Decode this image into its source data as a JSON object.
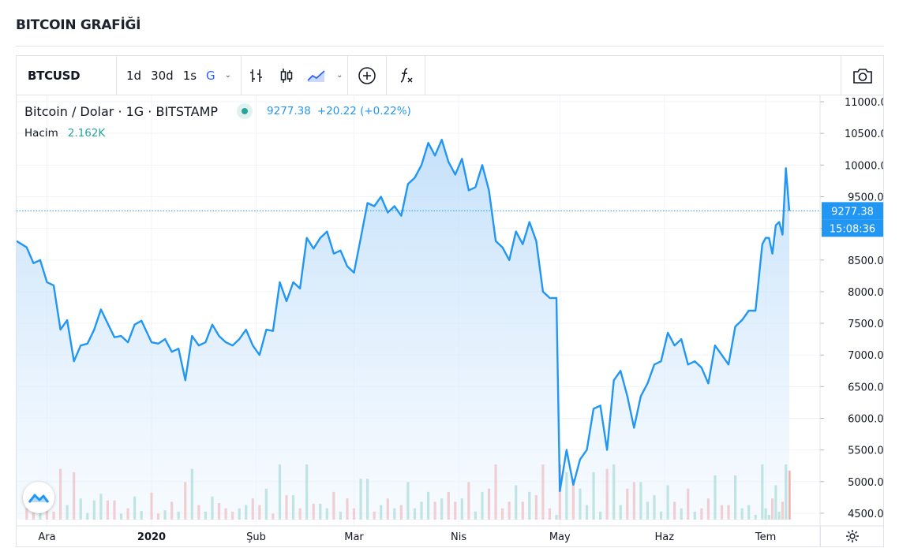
{
  "page_title": "BITCOIN GRAFİĞİ",
  "toolbar": {
    "symbol": "BTCUSD",
    "intervals": [
      {
        "label": "1d",
        "active": false
      },
      {
        "label": "30d",
        "active": false
      },
      {
        "label": "1s",
        "active": false
      },
      {
        "label": "G",
        "active": true
      }
    ],
    "chevron": "⌄"
  },
  "legend": {
    "instrument": "Bitcoin / Dolar · 1G · BITSTAMP",
    "price": "9277.38",
    "change": "+20.22 (+0.22%)",
    "volume_label": "Hacim",
    "volume_value": "2.162K"
  },
  "colors": {
    "line": "#2196f3",
    "area_top": "#bbdcfa",
    "area_bottom": "#eef6fe",
    "vol_up": "#8fd1c4",
    "vol_down": "#f2a5a5",
    "price_tag": "#2196f3"
  },
  "chart_data": {
    "type": "area",
    "title": "",
    "xlabel": "",
    "ylabel": "",
    "ylim": [
      4300,
      11100
    ],
    "y_ticks": [
      "11000.00",
      "10500.00",
      "10000.00",
      "9500.00",
      "9000.00",
      "8500.00",
      "8000.00",
      "7500.00",
      "7000.00",
      "6500.00",
      "6000.00",
      "5500.00",
      "5000.00",
      "4500.00"
    ],
    "y_tick_values": [
      11000,
      10500,
      10000,
      9500,
      9000,
      8500,
      8000,
      7500,
      7000,
      6500,
      6000,
      5500,
      5000,
      4500
    ],
    "x_ticks": [
      {
        "label": "Ara",
        "date": "2019-12-01"
      },
      {
        "label": "2020",
        "date": "2020-01-01"
      },
      {
        "label": "Şub",
        "date": "2020-02-01"
      },
      {
        "label": "Mar",
        "date": "2020-03-01"
      },
      {
        "label": "Nis",
        "date": "2020-04-01"
      },
      {
        "label": "May",
        "date": "2020-05-01"
      },
      {
        "label": "Haz",
        "date": "2020-06-01"
      },
      {
        "label": "Tem",
        "date": "2020-07-01"
      }
    ],
    "x_range": [
      "2019-11-22",
      "2020-07-08"
    ],
    "last_price": 9277.38,
    "last_price_label": "9277.38",
    "countdown_label": "15:08:36",
    "series": [
      {
        "points": [
          [
            "2019-11-22",
            8800
          ],
          [
            "2019-11-25",
            8700
          ],
          [
            "2019-11-27",
            8450
          ],
          [
            "2019-11-29",
            8500
          ],
          [
            "2019-12-01",
            8150
          ],
          [
            "2019-12-03",
            8100
          ],
          [
            "2019-12-05",
            7400
          ],
          [
            "2019-12-07",
            7550
          ],
          [
            "2019-12-09",
            6900
          ],
          [
            "2019-12-11",
            7150
          ],
          [
            "2019-12-13",
            7180
          ],
          [
            "2019-12-15",
            7400
          ],
          [
            "2019-12-17",
            7720
          ],
          [
            "2019-12-19",
            7500
          ],
          [
            "2019-12-21",
            7280
          ],
          [
            "2019-12-23",
            7300
          ],
          [
            "2019-12-25",
            7200
          ],
          [
            "2019-12-27",
            7480
          ],
          [
            "2019-12-29",
            7540
          ],
          [
            "2020-01-01",
            7200
          ],
          [
            "2020-01-03",
            7180
          ],
          [
            "2020-01-05",
            7250
          ],
          [
            "2020-01-07",
            7050
          ],
          [
            "2020-01-09",
            7100
          ],
          [
            "2020-01-11",
            6600
          ],
          [
            "2020-01-13",
            7300
          ],
          [
            "2020-01-15",
            7150
          ],
          [
            "2020-01-17",
            7200
          ],
          [
            "2020-01-19",
            7480
          ],
          [
            "2020-01-21",
            7300
          ],
          [
            "2020-01-23",
            7200
          ],
          [
            "2020-01-25",
            7150
          ],
          [
            "2020-01-27",
            7250
          ],
          [
            "2020-01-29",
            7400
          ],
          [
            "2020-01-31",
            7150
          ],
          [
            "2020-02-02",
            7000
          ],
          [
            "2020-02-04",
            7400
          ],
          [
            "2020-02-06",
            7380
          ],
          [
            "2020-02-08",
            8150
          ],
          [
            "2020-02-10",
            7850
          ],
          [
            "2020-02-12",
            8150
          ],
          [
            "2020-02-14",
            8050
          ],
          [
            "2020-02-16",
            8850
          ],
          [
            "2020-02-18",
            8680
          ],
          [
            "2020-02-20",
            8850
          ],
          [
            "2020-02-22",
            8950
          ],
          [
            "2020-02-24",
            8600
          ],
          [
            "2020-02-26",
            8650
          ],
          [
            "2020-02-28",
            8400
          ],
          [
            "2020-03-01",
            8300
          ],
          [
            "2020-03-03",
            8850
          ],
          [
            "2020-03-05",
            9400
          ],
          [
            "2020-03-07",
            9350
          ],
          [
            "2020-03-09",
            9500
          ],
          [
            "2020-03-11",
            9250
          ],
          [
            "2020-03-13",
            9350
          ],
          [
            "2020-03-15",
            9200
          ],
          [
            "2020-03-17",
            9700
          ],
          [
            "2020-03-19",
            9800
          ],
          [
            "2020-03-21",
            10000
          ],
          [
            "2020-03-23",
            10350
          ],
          [
            "2020-03-25",
            10150
          ],
          [
            "2020-03-27",
            10400
          ],
          [
            "2020-03-29",
            10050
          ],
          [
            "2020-03-31",
            9850
          ],
          [
            "2020-04-02",
            10100
          ],
          [
            "2020-04-04",
            9600
          ],
          [
            "2020-04-06",
            9650
          ],
          [
            "2020-04-08",
            10000
          ],
          [
            "2020-04-10",
            9600
          ],
          [
            "2020-04-12",
            8800
          ],
          [
            "2020-04-14",
            8700
          ],
          [
            "2020-04-16",
            8500
          ],
          [
            "2020-04-18",
            8950
          ],
          [
            "2020-04-20",
            8750
          ],
          [
            "2020-04-22",
            9100
          ],
          [
            "2020-04-24",
            8800
          ],
          [
            "2020-04-26",
            8000
          ],
          [
            "2020-04-28",
            7900
          ],
          [
            "2020-04-30",
            7900
          ],
          [
            "2020-05-01",
            4850
          ],
          [
            "2020-05-03",
            5500
          ],
          [
            "2020-05-05",
            4950
          ],
          [
            "2020-05-07",
            5350
          ],
          [
            "2020-05-09",
            5500
          ],
          [
            "2020-05-11",
            6150
          ],
          [
            "2020-05-13",
            6200
          ],
          [
            "2020-05-15",
            5500
          ],
          [
            "2020-05-17",
            6600
          ],
          [
            "2020-05-19",
            6750
          ],
          [
            "2020-05-21",
            6350
          ],
          [
            "2020-05-23",
            5850
          ],
          [
            "2020-05-25",
            6350
          ],
          [
            "2020-05-27",
            6550
          ],
          [
            "2020-05-29",
            6850
          ],
          [
            "2020-05-31",
            6900
          ],
          [
            "2020-06-02",
            7350
          ],
          [
            "2020-06-04",
            7150
          ],
          [
            "2020-06-06",
            7250
          ],
          [
            "2020-06-08",
            6850
          ],
          [
            "2020-06-10",
            6900
          ],
          [
            "2020-06-12",
            6800
          ],
          [
            "2020-06-14",
            6550
          ],
          [
            "2020-06-16",
            7150
          ],
          [
            "2020-06-18",
            7000
          ],
          [
            "2020-06-20",
            6850
          ],
          [
            "2020-06-22",
            7450
          ],
          [
            "2020-06-24",
            7550
          ],
          [
            "2020-06-26",
            7700
          ],
          [
            "2020-06-28",
            7700
          ],
          [
            "2020-06-30",
            8750
          ],
          [
            "2020-07-01",
            8850
          ],
          [
            "2020-07-02",
            8850
          ],
          [
            "2020-07-03",
            8600
          ],
          [
            "2020-07-04",
            9050
          ],
          [
            "2020-07-05",
            9100
          ],
          [
            "2020-07-06",
            8900
          ],
          [
            "2020-07-07",
            9950
          ],
          [
            "2020-07-08",
            9277
          ]
        ]
      }
    ]
  }
}
